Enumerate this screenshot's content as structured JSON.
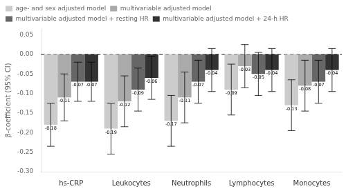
{
  "chart_data": {
    "type": "bar",
    "categories": [
      "hs-CRP",
      "Leukocytes",
      "Neutrophils",
      "Lymphocytes",
      "Monocytes"
    ],
    "series": [
      {
        "name": "age- and sex adjusted model",
        "color": "#cccccc",
        "values": [
          -0.18,
          -0.19,
          -0.17,
          -0.09,
          -0.13
        ],
        "ci_lower": [
          -0.235,
          -0.255,
          -0.235,
          -0.155,
          -0.195
        ],
        "ci_upper": [
          -0.125,
          -0.125,
          -0.105,
          -0.025,
          -0.065
        ]
      },
      {
        "name": "multivariable adjusted model",
        "color": "#aaaaaa",
        "values": [
          -0.11,
          -0.12,
          -0.11,
          -0.03,
          -0.08
        ],
        "ci_lower": [
          -0.17,
          -0.185,
          -0.175,
          -0.085,
          -0.145
        ],
        "ci_upper": [
          -0.05,
          -0.055,
          -0.045,
          0.025,
          -0.015
        ]
      },
      {
        "name": "multivariable adjusted model + resting HR",
        "color": "#666666",
        "values": [
          -0.07,
          -0.09,
          -0.07,
          -0.05,
          -0.07
        ],
        "ci_lower": [
          -0.12,
          -0.145,
          -0.125,
          -0.105,
          -0.125
        ],
        "ci_upper": [
          -0.02,
          -0.035,
          -0.015,
          0.005,
          -0.015
        ]
      },
      {
        "name": "multivariable adjusted model + 24-h HR",
        "color": "#333333",
        "values": [
          -0.07,
          -0.06,
          -0.04,
          -0.04,
          -0.04
        ],
        "ci_lower": [
          -0.12,
          -0.115,
          -0.095,
          -0.095,
          -0.095
        ],
        "ci_upper": [
          -0.02,
          -0.005,
          0.015,
          0.015,
          0.015
        ]
      }
    ],
    "ylabel": "β-coefficient (95% CI)",
    "ylim": [
      -0.3,
      0.065
    ],
    "yticks": [
      {
        "value": -0.3,
        "label": "-0.30"
      },
      -0.25,
      {
        "value": -0.2,
        "label": "-0.20"
      },
      -0.15,
      {
        "value": -0.1,
        "label": "-0.10"
      },
      -0.05,
      {
        "value": 0,
        "label": "0.00"
      },
      0.05
    ],
    "grid": false,
    "legend": "upper left",
    "data_labels": true
  }
}
